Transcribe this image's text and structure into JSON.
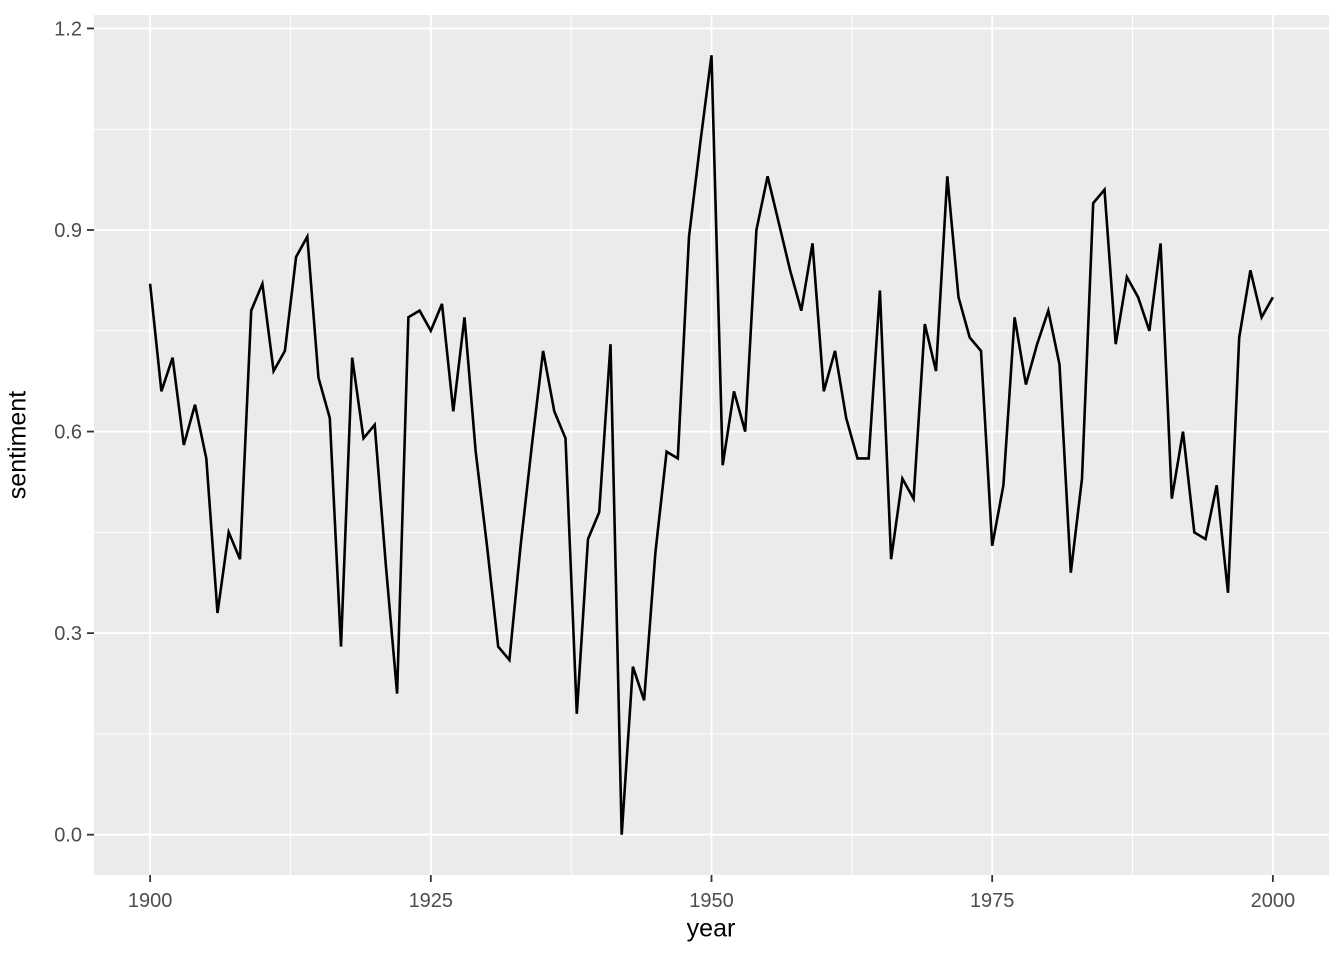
{
  "figure": {
    "background": "#FFFFFF",
    "panel_background": "#EBEBEB",
    "grid_color": "#FFFFFF",
    "tick_mark_color": "#333333",
    "tick_label_color": "#4D4D4D",
    "axis_title_color": "#000000",
    "line_color": "#000000"
  },
  "chart_data": {
    "type": "line",
    "title": "",
    "xlabel": "year",
    "ylabel": "sentiment",
    "legend": "none",
    "grid": true,
    "xlim": [
      1895,
      2005
    ],
    "ylim": [
      -0.06,
      1.22
    ],
    "x_ticks": [
      1900,
      1925,
      1950,
      1975,
      2000
    ],
    "y_ticks": [
      0.0,
      0.3,
      0.6,
      0.9,
      1.2
    ],
    "x_minor_ticks": [
      1912.5,
      1937.5,
      1962.5,
      1987.5
    ],
    "y_minor_ticks": [
      0.15,
      0.45,
      0.75,
      1.05
    ],
    "x": [
      1900,
      1901,
      1902,
      1903,
      1904,
      1905,
      1906,
      1907,
      1908,
      1909,
      1910,
      1911,
      1912,
      1913,
      1914,
      1915,
      1916,
      1917,
      1918,
      1919,
      1920,
      1921,
      1922,
      1923,
      1924,
      1925,
      1926,
      1927,
      1928,
      1929,
      1930,
      1931,
      1932,
      1933,
      1934,
      1935,
      1936,
      1937,
      1938,
      1939,
      1940,
      1941,
      1942,
      1943,
      1944,
      1945,
      1946,
      1947,
      1948,
      1949,
      1950,
      1951,
      1952,
      1953,
      1954,
      1955,
      1956,
      1957,
      1958,
      1959,
      1960,
      1961,
      1962,
      1963,
      1964,
      1965,
      1966,
      1967,
      1968,
      1969,
      1970,
      1971,
      1972,
      1973,
      1974,
      1975,
      1976,
      1977,
      1978,
      1979,
      1980,
      1981,
      1982,
      1983,
      1984,
      1985,
      1986,
      1987,
      1988,
      1989,
      1990,
      1991,
      1992,
      1993,
      1994,
      1995,
      1996,
      1997,
      1998,
      1999,
      2000
    ],
    "series": [
      {
        "name": "sentiment",
        "color": "#000000",
        "values": [
          0.82,
          0.66,
          0.71,
          0.58,
          0.64,
          0.56,
          0.33,
          0.45,
          0.41,
          0.78,
          0.82,
          0.69,
          0.72,
          0.86,
          0.89,
          0.68,
          0.62,
          0.28,
          0.71,
          0.59,
          0.61,
          0.4,
          0.21,
          0.77,
          0.78,
          0.75,
          0.79,
          0.63,
          0.77,
          0.57,
          0.43,
          0.28,
          0.26,
          0.43,
          0.58,
          0.72,
          0.63,
          0.59,
          0.18,
          0.44,
          0.48,
          0.73,
          0.0,
          0.25,
          0.2,
          0.42,
          0.57,
          0.56,
          0.89,
          1.03,
          1.16,
          0.55,
          0.66,
          0.6,
          0.9,
          0.98,
          0.91,
          0.84,
          0.78,
          0.88,
          0.66,
          0.72,
          0.62,
          0.56,
          0.56,
          0.81,
          0.41,
          0.53,
          0.5,
          0.76,
          0.69,
          0.98,
          0.8,
          0.74,
          0.72,
          0.43,
          0.52,
          0.77,
          0.67,
          0.73,
          0.78,
          0.7,
          0.39,
          0.53,
          0.94,
          0.96,
          0.73,
          0.83,
          0.8,
          0.75,
          0.88,
          0.5,
          0.6,
          0.45,
          0.44,
          0.52,
          0.36,
          0.74,
          0.84,
          0.77,
          0.8
        ]
      }
    ]
  }
}
